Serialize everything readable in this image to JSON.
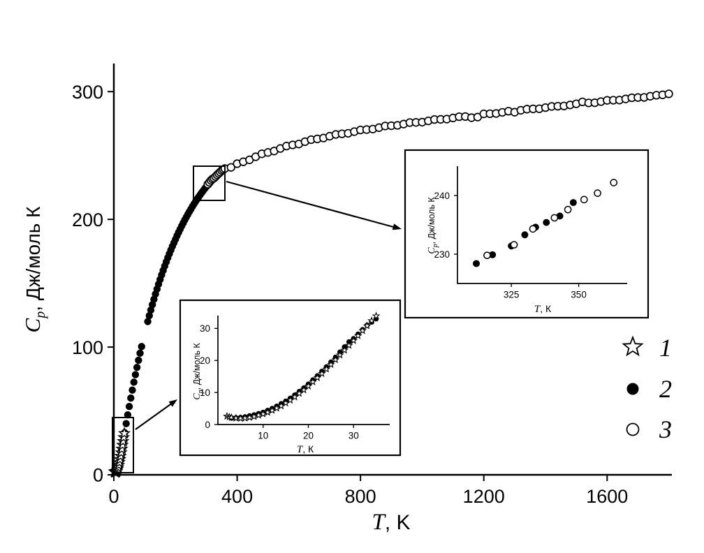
{
  "colors": {
    "foreground": "#000000",
    "background": "#ffffff"
  },
  "legend": {
    "items": [
      {
        "symbol": "star",
        "label": "1"
      },
      {
        "symbol": "filled-circle",
        "label": "2"
      },
      {
        "symbol": "open-circle",
        "label": "3"
      }
    ]
  },
  "chart_data": [
    {
      "id": "main-heat-capacity-curve",
      "type": "scatter",
      "xlabel": {
        "italic": "T",
        "rest": ", K"
      },
      "ylabel": {
        "italic": "C",
        "sub": "p",
        "rest": ", Дж/моль К"
      },
      "xlim": [
        0,
        1810
      ],
      "ylim": [
        0,
        322
      ],
      "x_ticks": [
        0,
        400,
        800,
        1200,
        1600
      ],
      "y_ticks": [
        0,
        100,
        200,
        300
      ],
      "grid": false,
      "legend_position": "right",
      "series": [
        {
          "name": "2",
          "symbol": "filled-circle",
          "points": [
            [
              5,
              2
            ],
            [
              10,
              3.5
            ],
            [
              15,
              7
            ],
            [
              20,
              12.4
            ],
            [
              25,
              19.2
            ],
            [
              30,
              26
            ],
            [
              35,
              33
            ],
            [
              40,
              40.1
            ],
            [
              45,
              46.9
            ],
            [
              50,
              53.5
            ],
            [
              55,
              60.1
            ],
            [
              60,
              66.3
            ],
            [
              65,
              72.5
            ],
            [
              70,
              78.4
            ],
            [
              75,
              84.1
            ],
            [
              80,
              89.7
            ],
            [
              85,
              95.2
            ],
            [
              90,
              100.4
            ],
            [
              110,
              120
            ],
            [
              115,
              124.6
            ],
            [
              120,
              129
            ],
            [
              125,
              133.2
            ],
            [
              130,
              137.4
            ],
            [
              135,
              141.5
            ],
            [
              140,
              145.4
            ],
            [
              145,
              149.2
            ],
            [
              150,
              152.9
            ],
            [
              155,
              156.5
            ],
            [
              160,
              160
            ],
            [
              165,
              163.4
            ],
            [
              170,
              166.7
            ],
            [
              175,
              169.9
            ],
            [
              180,
              173
            ],
            [
              185,
              176
            ],
            [
              190,
              178.9
            ],
            [
              195,
              181.7
            ],
            [
              200,
              184.4
            ],
            [
              205,
              187.2
            ],
            [
              210,
              189.8
            ],
            [
              215,
              192.3
            ],
            [
              220,
              194.8
            ],
            [
              225,
              197.1
            ],
            [
              230,
              199.5
            ],
            [
              235,
              201.7
            ],
            [
              240,
              203.9
            ],
            [
              245,
              206
            ],
            [
              250,
              208
            ],
            [
              255,
              210.1
            ],
            [
              260,
              212
            ],
            [
              265,
              213.9
            ],
            [
              270,
              215.7
            ],
            [
              275,
              217.5
            ],
            [
              280,
              219.2
            ],
            [
              285,
              220.9
            ],
            [
              290,
              222.5
            ],
            [
              295,
              224.1
            ],
            [
              300,
              225.6
            ],
            [
              305,
              227.1
            ],
            [
              310,
              228.5
            ],
            [
              315,
              230
            ],
            [
              320,
              231.3
            ],
            [
              325,
              232.6
            ],
            [
              330,
              233.9
            ],
            [
              335,
              235.2
            ],
            [
              340,
              236.4
            ],
            [
              345,
              237.5
            ],
            [
              350,
              239
            ]
          ]
        },
        {
          "name": "3",
          "symbol": "open-circle",
          "points": [
            [
              305,
              227.5
            ],
            [
              310,
              229
            ],
            [
              315,
              230.5
            ],
            [
              320,
              231.6
            ],
            [
              325,
              232.3
            ],
            [
              330,
              233.5
            ],
            [
              335,
              234.8
            ],
            [
              340,
              235.9
            ],
            [
              345,
              237
            ],
            [
              350,
              238.2
            ],
            [
              355,
              239
            ],
            [
              360,
              239.8
            ],
            [
              380,
              240.7
            ],
            [
              400,
              243.6
            ],
            [
              420,
              245.1
            ],
            [
              440,
              246.6
            ],
            [
              460,
              249
            ],
            [
              480,
              251.3
            ],
            [
              500,
              252.4
            ],
            [
              520,
              253.5
            ],
            [
              540,
              255.5
            ],
            [
              560,
              257.4
            ],
            [
              580,
              258.3
            ],
            [
              600,
              259
            ],
            [
              620,
              260.8
            ],
            [
              640,
              262.4
            ],
            [
              660,
              263
            ],
            [
              680,
              263.7
            ],
            [
              700,
              265.1
            ],
            [
              720,
              266.5
            ],
            [
              740,
              267
            ],
            [
              760,
              267.4
            ],
            [
              780,
              268.7
            ],
            [
              800,
              270
            ],
            [
              820,
              270.3
            ],
            [
              840,
              270.7
            ],
            [
              860,
              271.8
            ],
            [
              880,
              273.1
            ],
            [
              900,
              273.3
            ],
            [
              920,
              273.6
            ],
            [
              940,
              274.6
            ],
            [
              960,
              275.8
            ],
            [
              980,
              275.9
            ],
            [
              1000,
              276.1
            ],
            [
              1020,
              277.1
            ],
            [
              1040,
              278.2
            ],
            [
              1060,
              278.3
            ],
            [
              1080,
              278.5
            ],
            [
              1100,
              279.4
            ],
            [
              1120,
              280.4
            ],
            [
              1140,
              280.5
            ],
            [
              1160,
              279.6
            ],
            [
              1180,
              280.1
            ],
            [
              1200,
              282.6
            ],
            [
              1220,
              282.7
            ],
            [
              1240,
              282.9
            ],
            [
              1260,
              283.8
            ],
            [
              1280,
              284.7
            ],
            [
              1300,
              283.9
            ],
            [
              1320,
              285.4
            ],
            [
              1340,
              286.3
            ],
            [
              1360,
              286.5
            ],
            [
              1380,
              286.6
            ],
            [
              1400,
              287.5
            ],
            [
              1420,
              288.4
            ],
            [
              1440,
              288.6
            ],
            [
              1460,
              288.8
            ],
            [
              1480,
              289.6
            ],
            [
              1500,
              290.5
            ],
            [
              1520,
              292
            ],
            [
              1540,
              291.2
            ],
            [
              1560,
              291.3
            ],
            [
              1580,
              292.2
            ],
            [
              1600,
              293.2
            ],
            [
              1620,
              293.3
            ],
            [
              1640,
              293.4
            ],
            [
              1660,
              294.3
            ],
            [
              1680,
              295.2
            ],
            [
              1700,
              295.4
            ],
            [
              1720,
              295.5
            ],
            [
              1740,
              296.4
            ],
            [
              1760,
              297.2
            ],
            [
              1780,
              297.5
            ],
            [
              1800,
              298.3
            ]
          ]
        },
        {
          "name": "1",
          "symbol": "star",
          "points": [
            [
              2,
              2.6
            ],
            [
              3,
              2.2
            ],
            [
              4,
              2
            ],
            [
              5,
              1.9
            ],
            [
              6,
              2
            ],
            [
              7,
              2.2
            ],
            [
              8,
              2.5
            ],
            [
              9,
              2.9
            ],
            [
              10,
              3.3
            ],
            [
              12,
              4.4
            ],
            [
              14,
              5.8
            ],
            [
              16,
              7.6
            ],
            [
              18,
              9.7
            ],
            [
              20,
              12
            ],
            [
              22,
              14.6
            ],
            [
              24,
              17.3
            ],
            [
              26,
              20.2
            ],
            [
              28,
              23.2
            ],
            [
              30,
              26.2
            ],
            [
              32,
              29.3
            ],
            [
              34,
              32.4
            ]
          ]
        }
      ]
    },
    {
      "id": "inset-low-temperature",
      "type": "scatter",
      "xlabel": {
        "italic": "T",
        "rest": ", К"
      },
      "ylabel": {
        "italic": "C",
        "sub": "p",
        "rest": ", Дж/моль К"
      },
      "xlim": [
        0,
        38
      ],
      "ylim": [
        0,
        34
      ],
      "x_ticks": [
        10,
        20,
        30
      ],
      "y_ticks": [
        0,
        10,
        20,
        30
      ],
      "grid": false,
      "series": [
        {
          "name": "2",
          "symbol": "filled-circle",
          "points": [
            [
              3,
              2
            ],
            [
              4,
              2.1
            ],
            [
              5,
              2.2
            ],
            [
              6,
              2.4
            ],
            [
              7,
              2.7
            ],
            [
              8,
              3
            ],
            [
              9,
              3.4
            ],
            [
              10,
              3.8
            ],
            [
              11,
              4.4
            ],
            [
              12,
              5
            ],
            [
              13,
              5.7
            ],
            [
              14,
              6.5
            ],
            [
              15,
              7.3
            ],
            [
              16,
              8.2
            ],
            [
              17,
              9.2
            ],
            [
              18,
              10.3
            ],
            [
              19,
              11.4
            ],
            [
              20,
              12.6
            ],
            [
              21,
              13.9
            ],
            [
              22,
              15.2
            ],
            [
              23,
              16.6
            ],
            [
              24,
              18
            ],
            [
              25,
              19.5
            ],
            [
              26,
              21
            ],
            [
              27,
              22.6
            ],
            [
              28,
              24.2
            ],
            [
              29,
              25.8
            ],
            [
              30,
              26.8
            ],
            [
              31,
              28.2
            ],
            [
              32,
              29.6
            ],
            [
              33,
              31
            ],
            [
              34,
              32
            ],
            [
              35,
              33
            ]
          ]
        },
        {
          "name": "1",
          "symbol": "star",
          "points": [
            [
              2,
              2.6
            ],
            [
              2.5,
              2.35
            ],
            [
              3,
              2.2
            ],
            [
              4,
              2
            ],
            [
              5,
              1.9
            ],
            [
              6,
              2
            ],
            [
              7,
              2.2
            ],
            [
              8,
              2.5
            ],
            [
              9,
              2.9
            ],
            [
              10,
              3.3
            ],
            [
              11,
              3.8
            ],
            [
              12,
              4.4
            ],
            [
              13,
              5.1
            ],
            [
              14,
              5.8
            ],
            [
              15,
              6.7
            ],
            [
              16,
              7.6
            ],
            [
              17,
              8.6
            ],
            [
              18,
              9.7
            ],
            [
              19,
              10.8
            ],
            [
              20,
              12
            ],
            [
              21,
              13.3
            ],
            [
              22,
              14.6
            ],
            [
              23,
              15.9
            ],
            [
              24,
              17.3
            ],
            [
              25,
              18.7
            ],
            [
              26,
              20.2
            ],
            [
              27,
              21.7
            ],
            [
              28,
              23.2
            ],
            [
              29,
              24.7
            ],
            [
              30,
              26.2
            ],
            [
              31,
              27.7
            ],
            [
              32,
              29.3
            ],
            [
              33,
              30.8
            ],
            [
              34,
              32.4
            ],
            [
              35,
              33.9
            ]
          ]
        }
      ]
    },
    {
      "id": "inset-near-room-temperature",
      "type": "scatter",
      "xlabel": {
        "italic": "T",
        "rest": ", К"
      },
      "ylabel": {
        "italic": "C",
        "sub": "p",
        "rest": ", Дж/моль К"
      },
      "xlim": [
        305,
        368
      ],
      "ylim": [
        225,
        245
      ],
      "x_ticks": [
        325,
        350
      ],
      "y_ticks": [
        230,
        240
      ],
      "grid": false,
      "series": [
        {
          "name": "2",
          "symbol": "filled-circle",
          "points": [
            [
              312,
              228.4
            ],
            [
              318,
              229.9
            ],
            [
              325,
              231.4
            ],
            [
              330,
              233.3
            ],
            [
              334,
              234.6
            ],
            [
              338,
              235.4
            ],
            [
              343,
              236.5
            ],
            [
              348,
              238.8
            ]
          ]
        },
        {
          "name": "3",
          "symbol": "open-circle",
          "points": [
            [
              316,
              229.8
            ],
            [
              326,
              231.6
            ],
            [
              333,
              234.3
            ],
            [
              341,
              236.2
            ],
            [
              346,
              237.6
            ],
            [
              352,
              239.3
            ],
            [
              357,
              240.4
            ],
            [
              363,
              242.2
            ]
          ]
        }
      ]
    }
  ]
}
